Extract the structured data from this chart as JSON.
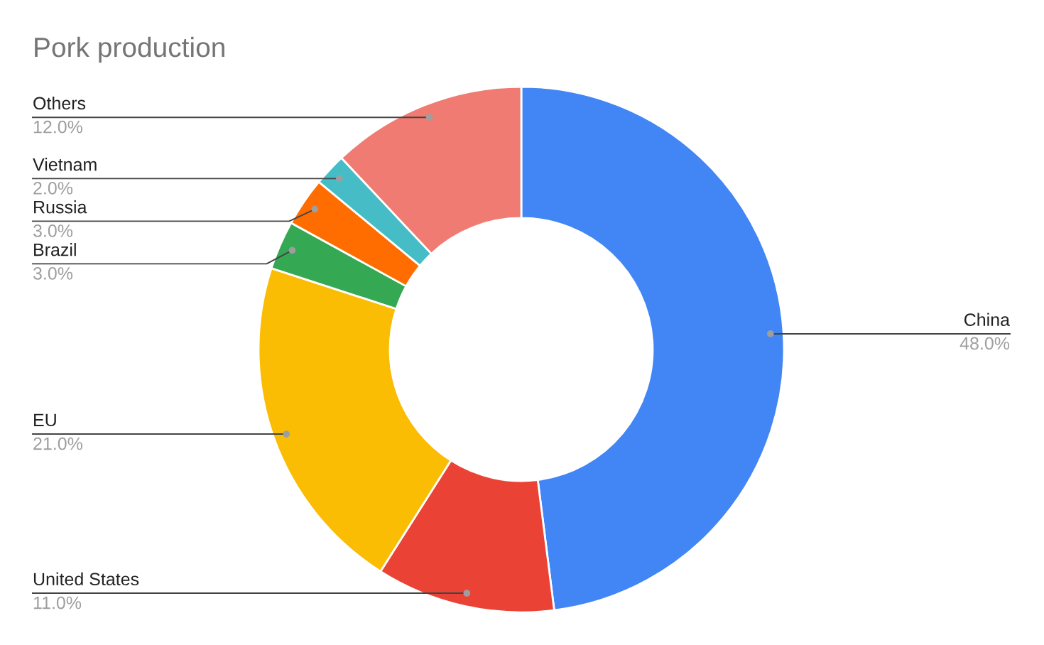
{
  "chart_data": {
    "type": "donut",
    "title": "Pork production",
    "categories": [
      "China",
      "United States",
      "EU",
      "Brazil",
      "Russia",
      "Vietnam",
      "Others"
    ],
    "values": [
      48,
      11,
      21,
      3,
      3,
      2,
      12
    ],
    "colors": [
      "#4285f4",
      "#ea4335",
      "#fbbc04",
      "#34a853",
      "#ff6d01",
      "#46bdc6",
      "#f07b72"
    ],
    "value_labels": [
      "48.0%",
      "11.0%",
      "21.0%",
      "3.0%",
      "3.0%",
      "2.0%",
      "12.0%"
    ],
    "legend": false
  }
}
